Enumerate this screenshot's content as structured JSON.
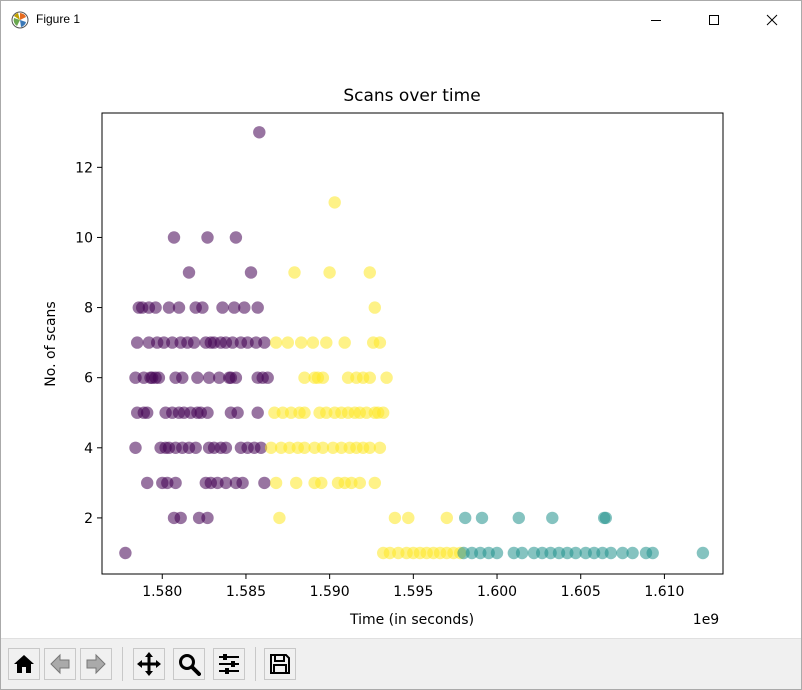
{
  "window": {
    "title": "Figure 1",
    "controls": [
      "minimize",
      "maximize",
      "close"
    ]
  },
  "toolbar": {
    "buttons": [
      "home-icon",
      "back-icon",
      "forward-icon",
      "pan-icon",
      "zoom-icon",
      "configure-subplots-icon",
      "save-icon"
    ]
  },
  "chart_data": {
    "type": "scatter",
    "title": "Scans over time",
    "xlabel": "Time (in seconds)",
    "ylabel": "No. of scans",
    "x_offset_label": "1e9",
    "x_ticks": [
      "1.580",
      "1.585",
      "1.590",
      "1.595",
      "1.600",
      "1.605",
      "1.610"
    ],
    "y_ticks": [
      "2",
      "4",
      "6",
      "8",
      "10",
      "12"
    ],
    "xlim": [
      1.5764,
      1.6135
    ],
    "ylim": [
      0.4,
      13.55
    ],
    "grid": false,
    "series": [
      {
        "color": "#440154",
        "points": [
          [
            1.5778,
            1
          ],
          [
            1.5786,
            8
          ],
          [
            1.5788,
            8
          ],
          [
            1.5796,
            8
          ],
          [
            1.5785,
            7
          ],
          [
            1.5792,
            7
          ],
          [
            1.5797,
            7
          ],
          [
            1.5801,
            7
          ],
          [
            1.5806,
            7
          ],
          [
            1.5811,
            7
          ],
          [
            1.5815,
            7
          ],
          [
            1.5819,
            7
          ],
          [
            1.5826,
            7
          ],
          [
            1.5829,
            7
          ],
          [
            1.5831,
            7
          ],
          [
            1.5835,
            7
          ],
          [
            1.5838,
            7
          ],
          [
            1.5842,
            7
          ],
          [
            1.5847,
            7
          ],
          [
            1.5851,
            7
          ],
          [
            1.5856,
            7
          ],
          [
            1.5861,
            7
          ],
          [
            1.5784,
            6
          ],
          [
            1.5789,
            6
          ],
          [
            1.5793,
            6
          ],
          [
            1.5794,
            6
          ],
          [
            1.5796,
            6
          ],
          [
            1.5798,
            6
          ],
          [
            1.5808,
            6
          ],
          [
            1.5812,
            6
          ],
          [
            1.5821,
            6
          ],
          [
            1.5828,
            6
          ],
          [
            1.5834,
            6
          ],
          [
            1.584,
            6
          ],
          [
            1.5841,
            6
          ],
          [
            1.5844,
            6
          ],
          [
            1.5857,
            6
          ],
          [
            1.586,
            6
          ],
          [
            1.5863,
            6
          ],
          [
            1.5785,
            5
          ],
          [
            1.5789,
            5
          ],
          [
            1.5791,
            5
          ],
          [
            1.5802,
            5
          ],
          [
            1.5806,
            5
          ],
          [
            1.581,
            5
          ],
          [
            1.5813,
            5
          ],
          [
            1.5817,
            5
          ],
          [
            1.5821,
            5
          ],
          [
            1.5823,
            5
          ],
          [
            1.5827,
            5
          ],
          [
            1.5841,
            5
          ],
          [
            1.5845,
            5
          ],
          [
            1.5857,
            5
          ],
          [
            1.5784,
            4
          ],
          [
            1.5799,
            4
          ],
          [
            1.5802,
            4
          ],
          [
            1.5804,
            4
          ],
          [
            1.5808,
            4
          ],
          [
            1.5812,
            4
          ],
          [
            1.5816,
            4
          ],
          [
            1.582,
            4
          ],
          [
            1.5828,
            4
          ],
          [
            1.5831,
            4
          ],
          [
            1.5835,
            4
          ],
          [
            1.5838,
            4
          ],
          [
            1.5847,
            4
          ],
          [
            1.5851,
            4
          ],
          [
            1.5855,
            4
          ],
          [
            1.5859,
            4
          ],
          [
            1.5791,
            3
          ],
          [
            1.58,
            3
          ],
          [
            1.5803,
            3
          ],
          [
            1.5808,
            3
          ],
          [
            1.5826,
            3
          ],
          [
            1.5829,
            3
          ],
          [
            1.5833,
            3
          ],
          [
            1.5838,
            3
          ],
          [
            1.5844,
            3
          ],
          [
            1.5848,
            3
          ],
          [
            1.5861,
            3
          ],
          [
            1.5807,
            2
          ],
          [
            1.5811,
            2
          ],
          [
            1.5822,
            2
          ],
          [
            1.5827,
            2
          ],
          [
            1.5807,
            10
          ],
          [
            1.5827,
            10
          ],
          [
            1.5844,
            10
          ],
          [
            1.5816,
            9
          ],
          [
            1.5853,
            9
          ],
          [
            1.5858,
            13
          ],
          [
            1.5792,
            8
          ],
          [
            1.5804,
            8
          ],
          [
            1.581,
            8
          ],
          [
            1.582,
            8
          ],
          [
            1.5824,
            8
          ],
          [
            1.5836,
            8
          ],
          [
            1.5843,
            8
          ],
          [
            1.5849,
            8
          ],
          [
            1.5857,
            8
          ]
        ]
      },
      {
        "color": "#fde725",
        "points": [
          [
            1.5903,
            11
          ],
          [
            1.5879,
            9
          ],
          [
            1.59,
            9
          ],
          [
            1.5924,
            9
          ],
          [
            1.5927,
            8
          ],
          [
            1.5868,
            7
          ],
          [
            1.5875,
            7
          ],
          [
            1.5883,
            7
          ],
          [
            1.589,
            7
          ],
          [
            1.5898,
            7
          ],
          [
            1.5909,
            7
          ],
          [
            1.5926,
            7
          ],
          [
            1.593,
            7
          ],
          [
            1.5885,
            6
          ],
          [
            1.5891,
            6
          ],
          [
            1.5893,
            6
          ],
          [
            1.5896,
            6
          ],
          [
            1.5911,
            6
          ],
          [
            1.5916,
            6
          ],
          [
            1.592,
            6
          ],
          [
            1.5924,
            6
          ],
          [
            1.5934,
            6
          ],
          [
            1.5867,
            5
          ],
          [
            1.5872,
            5
          ],
          [
            1.5877,
            5
          ],
          [
            1.5882,
            5
          ],
          [
            1.5885,
            5
          ],
          [
            1.5894,
            5
          ],
          [
            1.5898,
            5
          ],
          [
            1.5903,
            5
          ],
          [
            1.5907,
            5
          ],
          [
            1.5911,
            5
          ],
          [
            1.5915,
            5
          ],
          [
            1.5918,
            5
          ],
          [
            1.5922,
            5
          ],
          [
            1.5927,
            5
          ],
          [
            1.5929,
            5
          ],
          [
            1.5932,
            5
          ],
          [
            1.5865,
            4
          ],
          [
            1.5871,
            4
          ],
          [
            1.5876,
            4
          ],
          [
            1.5881,
            4
          ],
          [
            1.5885,
            4
          ],
          [
            1.5891,
            4
          ],
          [
            1.5896,
            4
          ],
          [
            1.5902,
            4
          ],
          [
            1.5907,
            4
          ],
          [
            1.5912,
            4
          ],
          [
            1.5916,
            4
          ],
          [
            1.592,
            4
          ],
          [
            1.5924,
            4
          ],
          [
            1.593,
            4
          ],
          [
            1.5868,
            3
          ],
          [
            1.588,
            3
          ],
          [
            1.5891,
            3
          ],
          [
            1.5895,
            3
          ],
          [
            1.5905,
            3
          ],
          [
            1.5909,
            3
          ],
          [
            1.5913,
            3
          ],
          [
            1.5918,
            3
          ],
          [
            1.5927,
            3
          ],
          [
            1.587,
            2
          ],
          [
            1.5939,
            2
          ],
          [
            1.5947,
            2
          ],
          [
            1.597,
            2
          ],
          [
            1.5932,
            1
          ],
          [
            1.5936,
            1
          ],
          [
            1.5941,
            1
          ],
          [
            1.5946,
            1
          ],
          [
            1.595,
            1
          ],
          [
            1.5954,
            1
          ],
          [
            1.5958,
            1
          ],
          [
            1.5962,
            1
          ],
          [
            1.5966,
            1
          ],
          [
            1.597,
            1
          ],
          [
            1.5974,
            1
          ],
          [
            1.5978,
            1
          ]
        ]
      },
      {
        "color": "#21918c",
        "points": [
          [
            1.598,
            1
          ],
          [
            1.5985,
            1
          ],
          [
            1.599,
            1
          ],
          [
            1.5995,
            1
          ],
          [
            1.6,
            1
          ],
          [
            1.601,
            1
          ],
          [
            1.6015,
            1
          ],
          [
            1.6022,
            1
          ],
          [
            1.6027,
            1
          ],
          [
            1.6032,
            1
          ],
          [
            1.6037,
            1
          ],
          [
            1.6042,
            1
          ],
          [
            1.6047,
            1
          ],
          [
            1.6053,
            1
          ],
          [
            1.6058,
            1
          ],
          [
            1.6063,
            1
          ],
          [
            1.6068,
            1
          ],
          [
            1.6075,
            1
          ],
          [
            1.6081,
            1
          ],
          [
            1.6089,
            1
          ],
          [
            1.6093,
            1
          ],
          [
            1.6123,
            1
          ],
          [
            1.5981,
            2
          ],
          [
            1.5991,
            2
          ],
          [
            1.6013,
            2
          ],
          [
            1.6033,
            2
          ],
          [
            1.6064,
            2
          ],
          [
            1.6065,
            2
          ]
        ]
      }
    ]
  }
}
